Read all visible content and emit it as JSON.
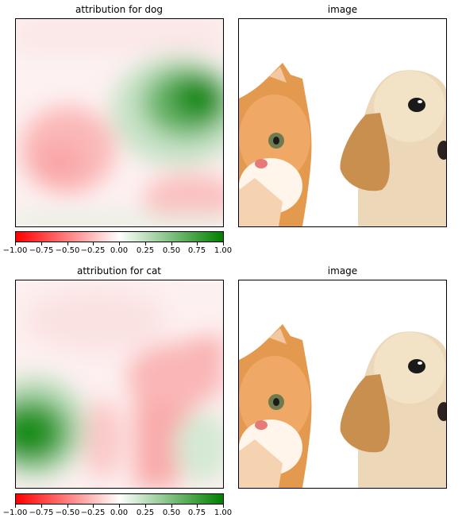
{
  "chart_data": [
    {
      "type": "heatmap",
      "title": "attribution for dog",
      "colormap": {
        "low": "#ff0000",
        "mid": "#ffffff",
        "high": "#008000"
      },
      "vmin": -1.0,
      "vmax": 1.0,
      "colorbar_ticks": [
        "−1.00",
        "−0.75",
        "−0.50",
        "−0.25",
        "0.00",
        "0.25",
        "0.50",
        "0.75",
        "1.00"
      ],
      "regions": [
        {
          "desc": "strong positive (green) over dog head",
          "value": 0.85
        },
        {
          "desc": "mild negative (pink) over cat face",
          "value": -0.3
        },
        {
          "desc": "mild negative (pink) lower right",
          "value": -0.25
        },
        {
          "desc": "faint negative top band",
          "value": -0.1
        },
        {
          "desc": "faint positive bottom strip",
          "value": 0.1
        }
      ]
    },
    {
      "type": "heatmap",
      "title": "attribution for cat",
      "colormap": {
        "low": "#ff0000",
        "mid": "#ffffff",
        "high": "#008000"
      },
      "vmin": -1.0,
      "vmax": 1.0,
      "colorbar_ticks": [
        "−1.00",
        "−0.75",
        "−0.50",
        "−0.25",
        "0.00",
        "0.25",
        "0.50",
        "0.75",
        "1.00"
      ],
      "regions": [
        {
          "desc": "strong positive (green) over cat face",
          "value": 0.85
        },
        {
          "desc": "negative (pink) band over dog head",
          "value": -0.35
        },
        {
          "desc": "mild positive lower right",
          "value": 0.2
        },
        {
          "desc": "faint negative upper area",
          "value": -0.1
        }
      ]
    }
  ],
  "image_panels": [
    {
      "title": "image",
      "content": "kitten (left) and puppy (right)"
    },
    {
      "title": "image",
      "content": "kitten (left) and puppy (right)"
    }
  ]
}
